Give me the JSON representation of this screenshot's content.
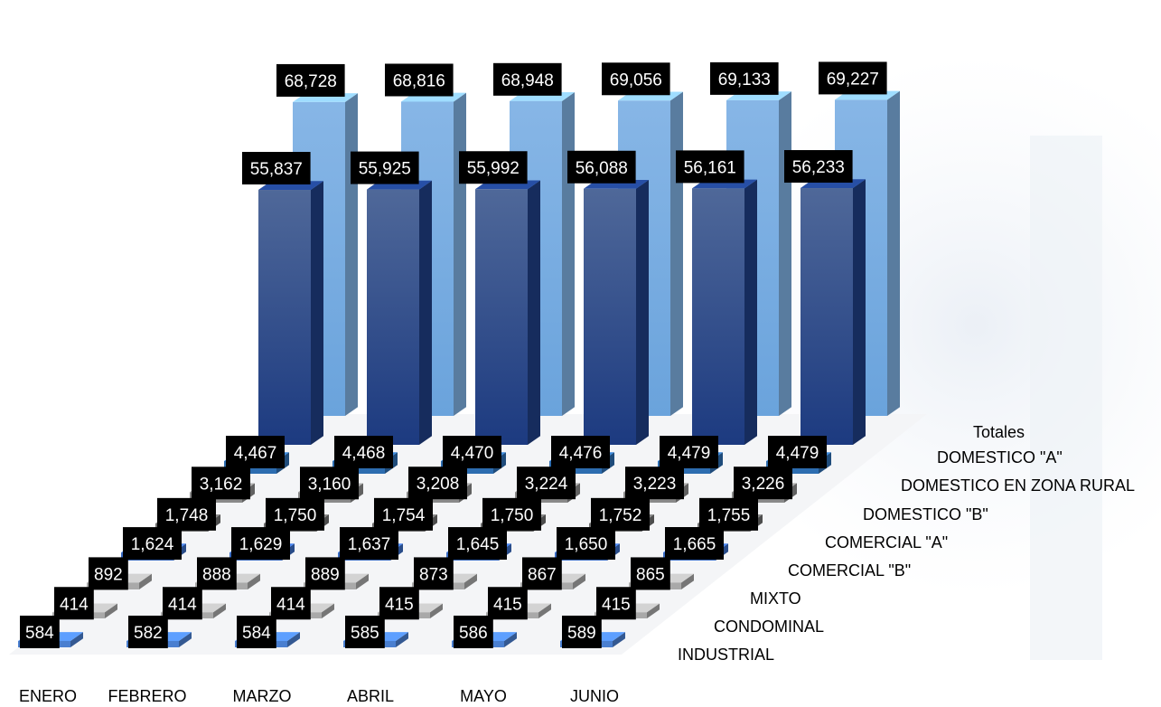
{
  "chart_data": {
    "type": "bar",
    "categories": [
      "ENERO",
      "FEBRERO",
      "MARZO",
      "ABRIL",
      "MAYO",
      "JUNIO"
    ],
    "series": [
      {
        "name": "INDUSTRIAL",
        "values": [
          584,
          582,
          584,
          585,
          586,
          589
        ],
        "labels": [
          "584",
          "582",
          "584",
          "585",
          "586",
          "589"
        ],
        "color": "#4a7fd0"
      },
      {
        "name": "CONDOMINAL",
        "values": [
          414,
          414,
          414,
          415,
          415,
          415
        ],
        "labels": [
          "414",
          "414",
          "414",
          "415",
          "415",
          "415"
        ],
        "color": "#a9a9a9"
      },
      {
        "name": "MIXTO",
        "values": [
          892,
          888,
          889,
          873,
          867,
          865
        ],
        "labels": [
          "892",
          "888",
          "889",
          "873",
          "867",
          "865"
        ],
        "color": "#a9a9a9"
      },
      {
        "name": "COMERCIAL \"B\"",
        "values": [
          1624,
          1629,
          1637,
          1645,
          1650,
          1665
        ],
        "labels": [
          "1,624",
          "1,629",
          "1,637",
          "1,645",
          "1,650",
          "1,665"
        ],
        "color": "#3a6cc4"
      },
      {
        "name": "COMERCIAL \"A\"",
        "values": [
          1748,
          1750,
          1754,
          1750,
          1752,
          1755
        ],
        "labels": [
          "1,748",
          "1,750",
          "1,754",
          "1,750",
          "1,752",
          "1,755"
        ],
        "color": "#6e6e6e"
      },
      {
        "name": "DOMESTICO \"B\"",
        "values": [
          3162,
          3160,
          3208,
          3224,
          3223,
          3226
        ],
        "labels": [
          "3,162",
          "3,160",
          "3,208",
          "3,224",
          "3,223",
          "3,226"
        ],
        "color": "#8a8a8a"
      },
      {
        "name": "DOMESTICO EN ZONA RURAL",
        "values": [
          4467,
          4468,
          4470,
          4476,
          4479,
          4479
        ],
        "labels": [
          "4,467",
          "4,468",
          "4,470",
          "4,476",
          "4,479",
          "4,479"
        ],
        "color": "#2d6db0"
      },
      {
        "name": "DOMESTICO \"A\"",
        "values": [
          55837,
          55925,
          55992,
          56088,
          56161,
          56233
        ],
        "labels": [
          "55,837",
          "55,925",
          "55,992",
          "56,088",
          "56,161",
          "56,233"
        ],
        "color": "#1f3f85"
      },
      {
        "name": "Totales",
        "values": [
          68728,
          68816,
          68948,
          69056,
          69133,
          69227
        ],
        "labels": [
          "68,728",
          "68,816",
          "68,948",
          "69,056",
          "69,133",
          "69,227"
        ],
        "color": "#7fb1e3"
      }
    ],
    "title": "",
    "xlabel": "",
    "ylabel": "",
    "legend": "none",
    "grid": false
  }
}
